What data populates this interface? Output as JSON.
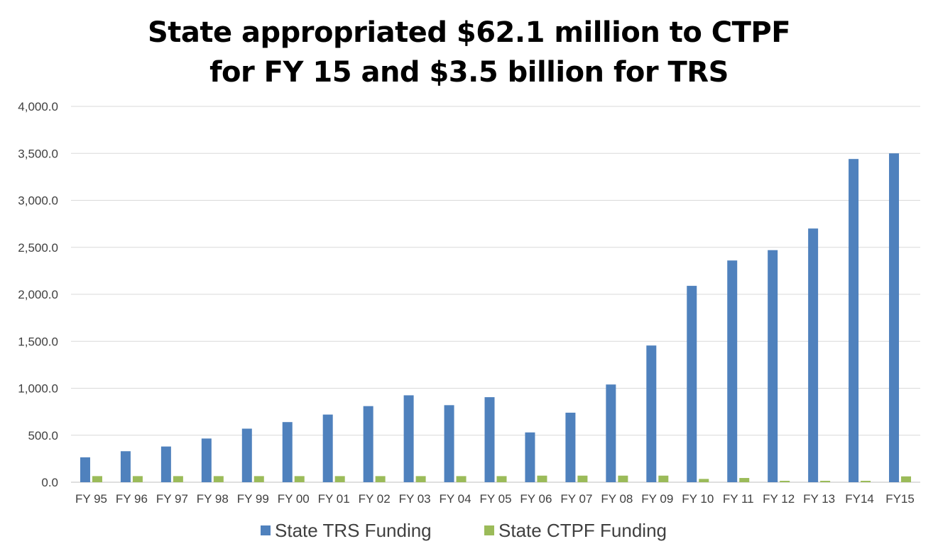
{
  "chart_data": {
    "type": "bar",
    "title_lines": [
      "State appropriated $62.1 million to CTPF",
      "for FY 15 and $3.5 billion for TRS"
    ],
    "categories": [
      "FY 95",
      "FY 96",
      "FY 97",
      "FY 98",
      "FY 99",
      "FY 00",
      "FY 01",
      "FY 02",
      "FY 03",
      "FY 04",
      "FY 05",
      "FY 06",
      "FY 07",
      "FY 08",
      "FY 09",
      "FY 10",
      "FY 11",
      "FY 12",
      "FY 13",
      "FY14",
      "FY15"
    ],
    "series": [
      {
        "name": "State TRS Funding",
        "color": "#4f81bd",
        "values": [
          265,
          330,
          380,
          465,
          570,
          640,
          720,
          810,
          925,
          820,
          905,
          530,
          740,
          1040,
          1455,
          2090,
          2360,
          2470,
          2700,
          3440,
          3500
        ]
      },
      {
        "name": "State CTPF Funding",
        "color": "#9bbb59",
        "values": [
          65,
          65,
          65,
          65,
          65,
          65,
          65,
          65,
          65,
          65,
          65,
          70,
          70,
          70,
          70,
          35,
          45,
          15,
          15,
          15,
          62.1
        ]
      }
    ],
    "yticks": [
      "0.0",
      "500.0",
      "1,000.0",
      "1,500.0",
      "2,000.0",
      "2,500.0",
      "3,000.0",
      "3,500.0",
      "4,000.0"
    ],
    "ylim": [
      0,
      4000
    ],
    "grid": true,
    "legend_position": "bottom"
  }
}
